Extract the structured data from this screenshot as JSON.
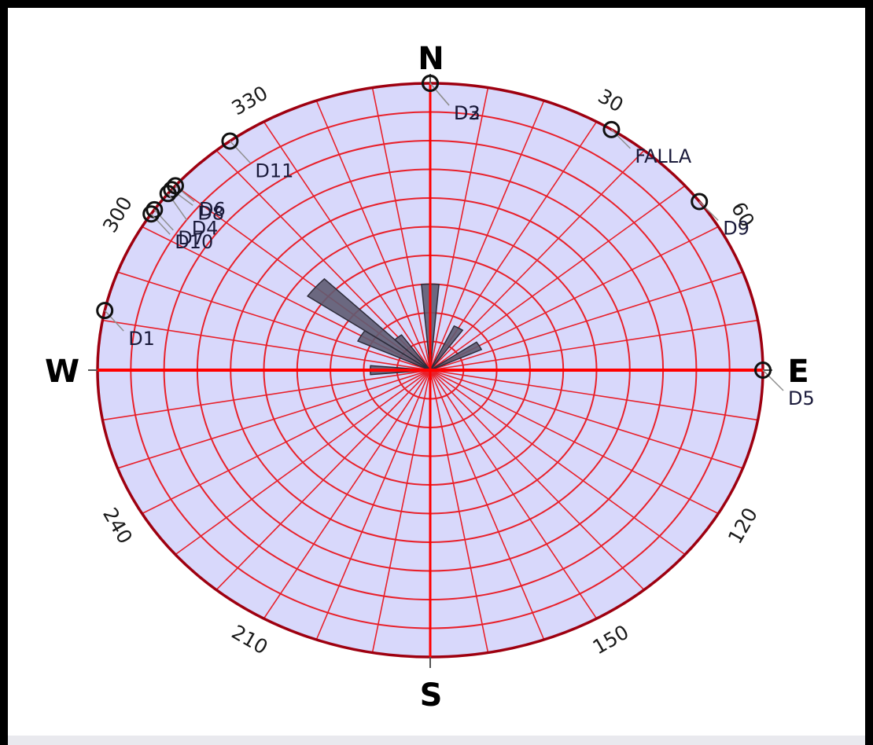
{
  "chart_data": {
    "type": "rose",
    "cardinals": {
      "north": "N",
      "east": "E",
      "south": "S",
      "west": "W"
    },
    "degree_labels": [
      {
        "angle": 30,
        "text": "30"
      },
      {
        "angle": 60,
        "text": "60"
      },
      {
        "angle": 120,
        "text": "120"
      },
      {
        "angle": 150,
        "text": "150"
      },
      {
        "angle": 210,
        "text": "210"
      },
      {
        "angle": 240,
        "text": "240"
      },
      {
        "angle": 300,
        "text": "300"
      },
      {
        "angle": 330,
        "text": "330"
      }
    ],
    "points": [
      {
        "name": "D1",
        "azimuth": 282
      },
      {
        "name": "D2",
        "azimuth": 0
      },
      {
        "name": "D3",
        "azimuth": 0
      },
      {
        "name": "D11",
        "azimuth": 323
      },
      {
        "name": "D6",
        "azimuth": 310
      },
      {
        "name": "D8",
        "azimuth": 309
      },
      {
        "name": "D4",
        "azimuth": 308
      },
      {
        "name": "D7",
        "azimuth": 304
      },
      {
        "name": "D10",
        "azimuth": 303
      },
      {
        "name": "FALLA",
        "azimuth": 33
      },
      {
        "name": "D9",
        "azimuth": 54
      },
      {
        "name": "D5",
        "azimuth": 90
      }
    ],
    "petals": [
      {
        "azimuth": 0,
        "value": 3
      },
      {
        "azimuth": 30,
        "value": 1.7
      },
      {
        "azimuth": 60,
        "value": 1.7
      },
      {
        "azimuth": 270,
        "value": 1.8
      },
      {
        "azimuth": 300,
        "value": 2.4
      },
      {
        "azimuth": 310,
        "value": 4.5
      },
      {
        "azimuth": 320,
        "value": 1.5
      }
    ],
    "rmax": 10,
    "ring_count": 10,
    "spoke_step_degrees": 10,
    "colors": {
      "disc": "#d8d8fb",
      "grid": "#e8202a",
      "rim": "#9e0010",
      "petal": "#5f5c72",
      "axis": "#ff0000"
    }
  }
}
